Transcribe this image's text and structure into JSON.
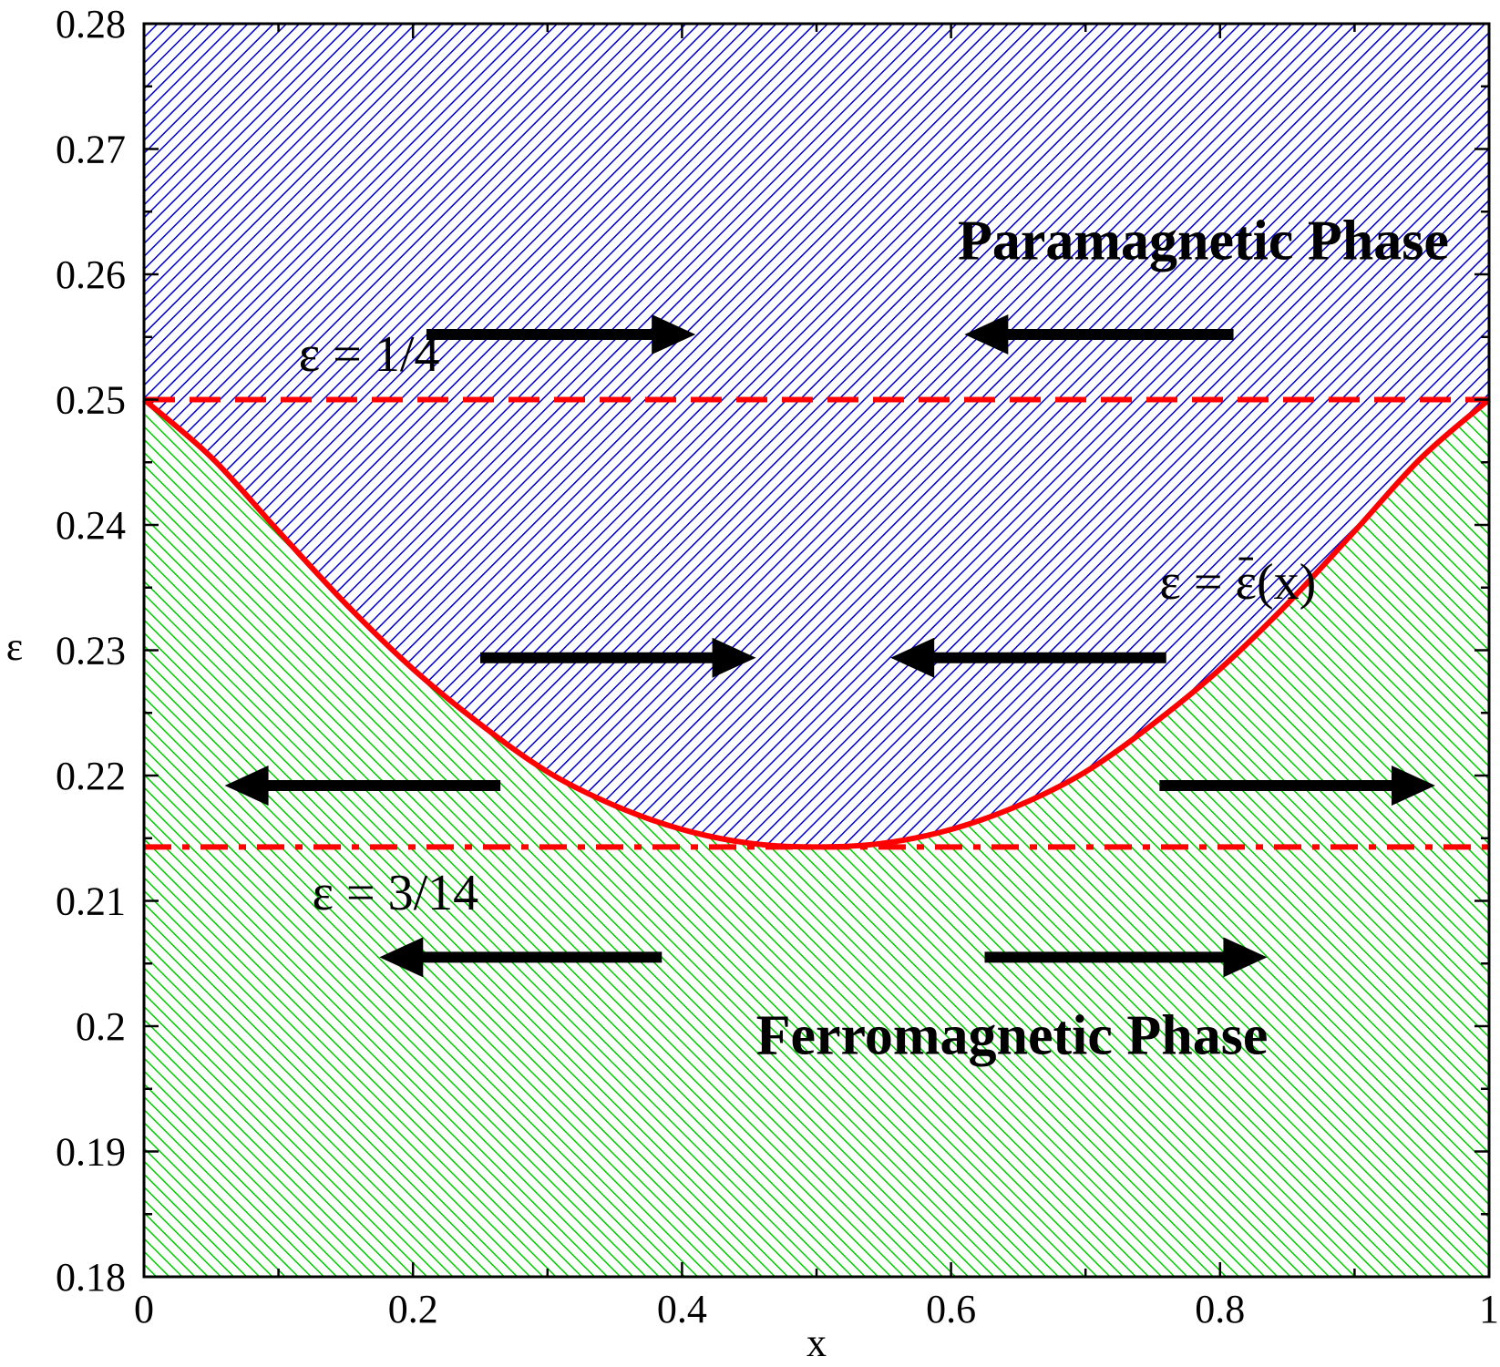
{
  "chart_data": {
    "type": "area",
    "title": "",
    "xlabel": "x",
    "ylabel": "ε",
    "xlim": [
      0,
      1
    ],
    "ylim": [
      0.18,
      0.28
    ],
    "x_ticks": [
      0,
      0.2,
      0.4,
      0.6,
      0.8,
      1
    ],
    "x_tick_labels": [
      "0",
      "0.2",
      "0.4",
      "0.6",
      "0.8",
      "1"
    ],
    "y_ticks": [
      0.18,
      0.19,
      0.2,
      0.21,
      0.22,
      0.23,
      0.24,
      0.25,
      0.26,
      0.27,
      0.28
    ],
    "y_tick_labels": [
      "0.18",
      "0.19",
      "0.2",
      "0.21",
      "0.22",
      "0.23",
      "0.24",
      "0.25",
      "0.26",
      "0.27",
      "0.28"
    ],
    "grid": false,
    "regions": [
      {
        "label": "Paramagnetic Phase",
        "color": "#0000cc",
        "fill": "diagonal hatch",
        "position": "above curve"
      },
      {
        "label": "Ferromagnetic Phase",
        "color": "#00cc00",
        "fill": "diagonal hatch",
        "position": "below curve"
      }
    ],
    "critical_curve": {
      "label": "ε = ε(x)",
      "color": "#ff0000",
      "style": "solid",
      "x": [
        0,
        0.05,
        0.1,
        0.15,
        0.2,
        0.25,
        0.3,
        0.35,
        0.4,
        0.45,
        0.5,
        0.55,
        0.6,
        0.65,
        0.7,
        0.75,
        0.8,
        0.85,
        0.9,
        0.95,
        1.0
      ],
      "y": [
        0.25,
        0.2454,
        0.2395,
        0.2337,
        0.2285,
        0.2241,
        0.2203,
        0.2176,
        0.2157,
        0.2146,
        0.2143,
        0.2146,
        0.2157,
        0.2176,
        0.2203,
        0.2241,
        0.2285,
        0.2337,
        0.2395,
        0.2454,
        0.25
      ]
    },
    "reference_lines": [
      {
        "label": "ε = 1/4",
        "y": 0.25,
        "color": "#ff0000",
        "style": "dashed"
      },
      {
        "label": "ε = 3/14",
        "y": 0.2143,
        "color": "#ff0000",
        "style": "dash-dot"
      }
    ],
    "arrows": [
      {
        "x_from": 0.21,
        "x_to": 0.41,
        "y": 0.2552,
        "direction": "right"
      },
      {
        "x_from": 0.81,
        "x_to": 0.61,
        "y": 0.2552,
        "direction": "left"
      },
      {
        "x_from": 0.25,
        "x_to": 0.455,
        "y": 0.2294,
        "direction": "right"
      },
      {
        "x_from": 0.76,
        "x_to": 0.555,
        "y": 0.2294,
        "direction": "left"
      },
      {
        "x_from": 0.265,
        "x_to": 0.06,
        "y": 0.2192,
        "direction": "left"
      },
      {
        "x_from": 0.755,
        "x_to": 0.96,
        "y": 0.2192,
        "direction": "right"
      },
      {
        "x_from": 0.385,
        "x_to": 0.175,
        "y": 0.2055,
        "direction": "left"
      },
      {
        "x_from": 0.625,
        "x_to": 0.835,
        "y": 0.2055,
        "direction": "right"
      }
    ],
    "annotations": [
      {
        "text": "Paramagnetic Phase",
        "x": 0.605,
        "y": 0.2612,
        "style": "bold"
      },
      {
        "text": "Ferromagnetic Phase",
        "x": 0.455,
        "y": 0.1978,
        "style": "bold"
      },
      {
        "text": "ε = 1/4",
        "x": 0.115,
        "y": 0.2523,
        "style": "normal"
      },
      {
        "text": "ε = 3/14",
        "x": 0.125,
        "y": 0.2093,
        "style": "normal"
      },
      {
        "text": "ε = ε(x)",
        "x": 0.755,
        "y": 0.2341,
        "style": "normal",
        "overbar_on_second_symbol": true
      }
    ]
  }
}
